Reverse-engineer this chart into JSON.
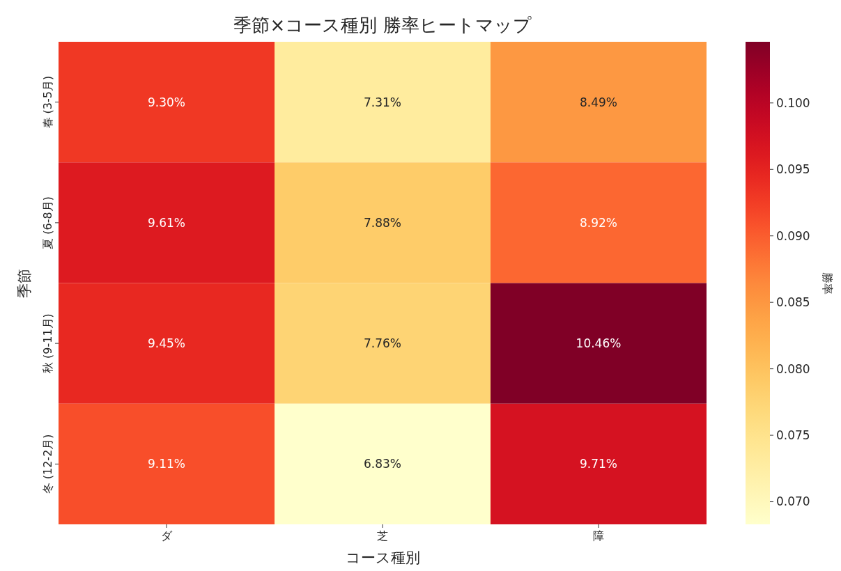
{
  "chart_data": {
    "type": "heatmap",
    "title": "季節×コース種別 勝率ヒートマップ",
    "xlabel": "コース種別",
    "ylabel": "季節",
    "clabel": "勝率",
    "categories": [
      "ダ",
      "芝",
      "障"
    ],
    "y_categories": [
      "春 (3-5月)",
      "夏 (6-8月)",
      "秋 (9-11月)",
      "冬 (12-2月)"
    ],
    "cells": [
      [
        0.093,
        0.0731,
        0.0849
      ],
      [
        0.0961,
        0.0788,
        0.0892
      ],
      [
        0.0945,
        0.0776,
        0.1046
      ],
      [
        0.0911,
        0.0683,
        0.0971
      ]
    ],
    "cell_labels": [
      [
        "9.30%",
        "7.31%",
        "8.49%"
      ],
      [
        "9.61%",
        "7.88%",
        "8.92%"
      ],
      [
        "9.45%",
        "7.76%",
        "10.46%"
      ],
      [
        "9.11%",
        "6.83%",
        "9.71%"
      ]
    ],
    "clim": [
      0.0683,
      0.1046
    ],
    "cticks": [
      {
        "value": 0.07,
        "label": "0.070"
      },
      {
        "value": 0.075,
        "label": "0.075"
      },
      {
        "value": 0.08,
        "label": "0.080"
      },
      {
        "value": 0.085,
        "label": "0.085"
      },
      {
        "value": 0.09,
        "label": "0.090"
      },
      {
        "value": 0.095,
        "label": "0.095"
      },
      {
        "value": 0.1,
        "label": "0.100"
      }
    ]
  }
}
